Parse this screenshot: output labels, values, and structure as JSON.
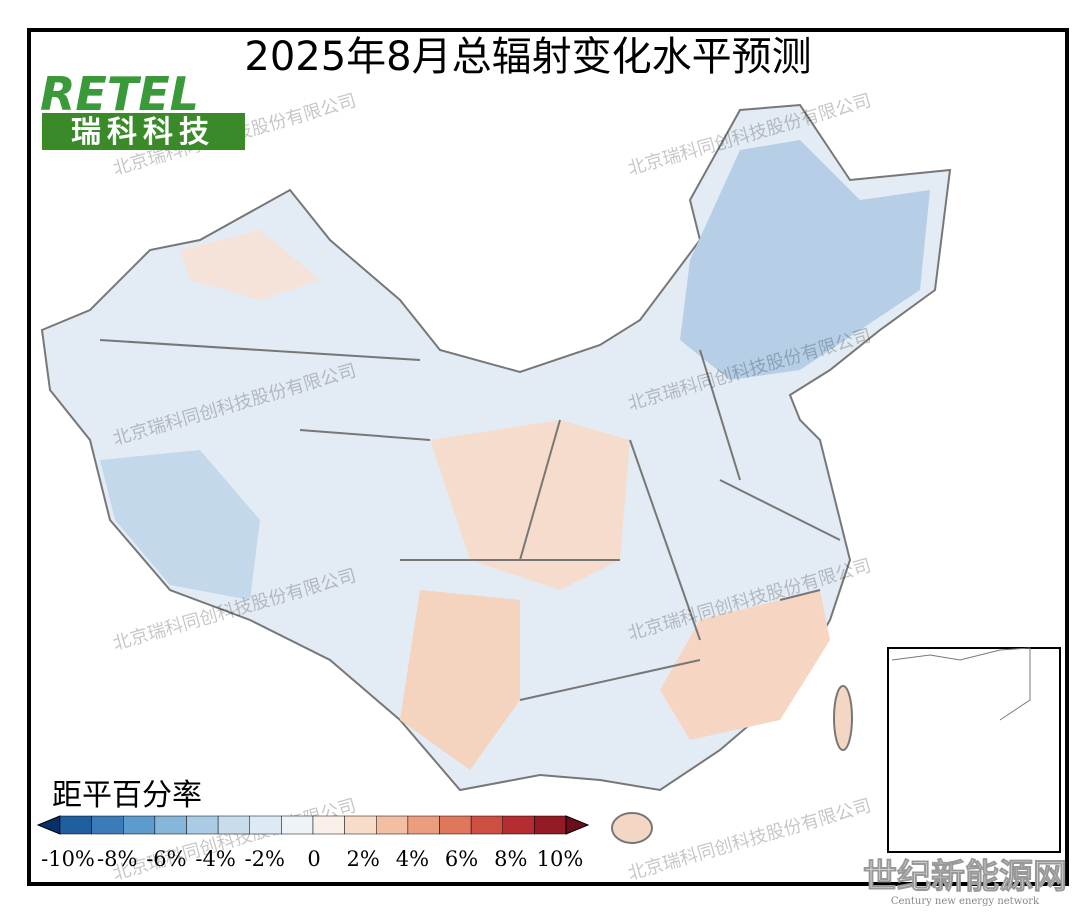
{
  "title": "2025年8月总辐射变化水平预测",
  "logo": {
    "brand": "RETEL",
    "name": "瑞科科技"
  },
  "watermark": "北京瑞科同创科技股份有限公司",
  "legend": {
    "title": "距平百分率",
    "ticks": [
      "-10%",
      "-8%",
      "-6%",
      "-4%",
      "-2%",
      "0",
      "2%",
      "4%",
      "6%",
      "8%",
      "10%"
    ],
    "colors": [
      "#08306b",
      "#1f5fa0",
      "#3b7cb8",
      "#5d9bcc",
      "#86b6da",
      "#a9cbe5",
      "#c8dcee",
      "#dde9f4",
      "#eef3f8",
      "#faf0ea",
      "#f8dcca",
      "#f3bfa3",
      "#eb9e7e",
      "#de775c",
      "#cd4f42",
      "#b52d31",
      "#941a25",
      "#6b0d1a"
    ]
  },
  "credit": {
    "name": "世纪新能源网",
    "sub": "Century new energy network"
  }
}
